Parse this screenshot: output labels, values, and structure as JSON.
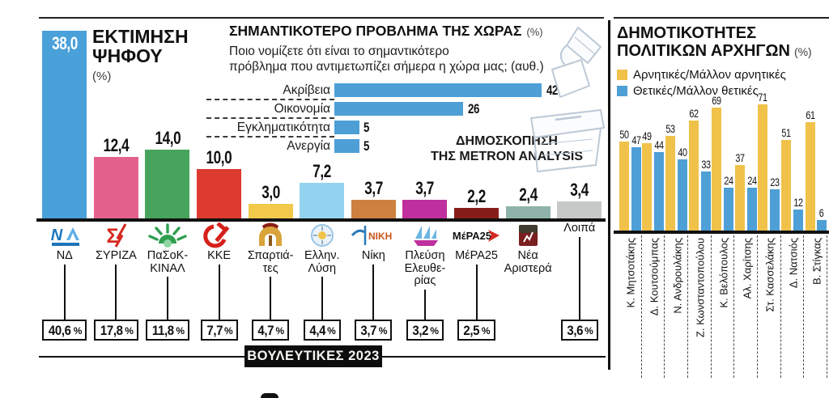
{
  "poll_source": "ΔΗΜΟΣΚΟΠΗΣΗ\nΤΗΣ METRON ANALYSIS",
  "footer": {
    "label": "ΒΟΥΛΕΥΤΙΚΕΣ 2023"
  },
  "colors": {
    "negative_yellow": "#f0c24a",
    "positive_blue": "#4d9fd6",
    "problem_bar_blue": "#4d9fd6"
  },
  "chart_data": [
    {
      "id": "vote-estimate",
      "type": "bar",
      "title": "ΕΚΤΙΜΗΣΗ ΨΗΦΟΥ",
      "title_display": "ΕΚΤΙΜΗΣΗ\nΨΗΦΟΥ",
      "unit": "(%)",
      "categories": [
        "ΝΔ",
        "ΣΥΡΙΖΑ",
        "ΠαΣοΚ-ΚΙΝΑΛ",
        "ΚΚΕ",
        "Σπαρτιάτες",
        "Ελλην. Λύση",
        "Νίκη",
        "Πλεύση Ελευθερίας",
        "ΜέΡΑ25",
        "Νέα Αριστερά",
        "Λοιπά"
      ],
      "display_names": [
        "ΝΔ",
        "ΣΥΡΙΖΑ",
        "ΠαΣοΚ-\nΚΙΝΑΛ",
        "ΚΚΕ",
        "Σπαρτιά-\nτες",
        "Ελλην.\nΛύση",
        "Νίκη",
        "Πλεύση\nΕλευθε-\nρίας",
        "ΜέΡΑ25",
        "Νέα\nΑριστερά",
        "Λοιπά"
      ],
      "values": [
        38.0,
        12.4,
        14.0,
        10.0,
        3.0,
        7.2,
        3.7,
        3.7,
        2.2,
        2.4,
        3.4
      ],
      "value_labels": [
        "38,0",
        "12,4",
        "14,0",
        "10,0",
        "3,0",
        "7,2",
        "3,7",
        "3,7",
        "2,2",
        "2,4",
        "3,4"
      ],
      "colors": [
        "#4aa0d9",
        "#e4618e",
        "#46a45c",
        "#dd3a30",
        "#f3c94c",
        "#93d3f0",
        "#cd8140",
        "#c02f9e",
        "#871d1b",
        "#8fb3ab",
        "#c7c9c8"
      ],
      "logo_icons": [
        "nd-logo",
        "syriza-logo",
        "pasok-kinal-logo",
        "kke-logo",
        "spartiates-logo",
        "elliniki-lysi-logo",
        "niki-logo",
        "plefsi-eleftherias-logo",
        "mera25-logo",
        "nea-aristera-logo",
        null
      ],
      "election_2023": {
        "label": "ΒΟΥΛΕΥΤΙΚΕΣ 2023",
        "values": [
          "40,6%",
          "17,8%",
          "11,8%",
          "7,7%",
          "4,7%",
          "4,4%",
          "3,7%",
          "3,2%",
          "2,5%",
          null,
          "3,6%"
        ]
      },
      "ylim": [
        0,
        40
      ],
      "grid": false
    },
    {
      "id": "country-problem",
      "type": "bar_horizontal",
      "title": "ΣΗΜΑΝΤΙΚΟΤΕΡΟ ΠΡΟΒΛΗΜΑ ΤΗΣ ΧΩΡΑΣ",
      "unit": "(%)",
      "question": "Ποιο νομίζετε ότι είναι το σημαντικότερο\nπρόβλημα που αντιμετωπίζει σήμερα η χώρα μας; (αυθ.)",
      "categories": [
        "Ακρίβεια",
        "Οικονομία",
        "Εγκληματικότητα",
        "Ανεργία"
      ],
      "values": [
        42,
        26,
        5,
        5
      ],
      "bar_color": "#4d9fd6",
      "source": "ΔΗΜΟΣΚΟΠΗΣΗ\nΤΗΣ METRON ANALYSIS",
      "xlim": [
        0,
        45
      ],
      "grid": false
    },
    {
      "id": "leader-popularity",
      "type": "grouped_bar",
      "title": "ΔΗΜΟΤΙΚΟΤΗΤΕΣ ΠΟΛΙΤΙΚΩΝ ΑΡΧΗΓΩΝ",
      "title_l1": "ΔΗΜΟΤΙΚΟΤΗΤΕΣ",
      "title_l2": "ΠΟΛΙΤΙΚΩΝ ΑΡΧΗΓΩΝ",
      "unit": "(%)",
      "legend_position": "top",
      "categories": [
        "Κ. Μητσοτάκης",
        "Δ. Κουτσούμπας",
        "Ν. Ανδρουλάκης",
        "Ζ. Κωνσταντοπούλου",
        "Κ. Βελόπουλος",
        "Αλ. Χαρίτσης",
        "Στ. Κασσελάκης",
        "Δ. Νατσιός",
        "Β. Στίγκας"
      ],
      "series": [
        {
          "name": "Αρνητικές/Μάλλον αρνητικές",
          "color": "#f0c24a",
          "values": [
            50,
            49,
            53,
            62,
            69,
            37,
            71,
            51,
            61
          ]
        },
        {
          "name": "Θετικές/Μάλλον θετικές",
          "color": "#4d9fd6",
          "values": [
            47,
            44,
            40,
            33,
            24,
            24,
            23,
            12,
            6
          ]
        }
      ],
      "ylim": [
        0,
        80
      ],
      "grid": false
    }
  ]
}
